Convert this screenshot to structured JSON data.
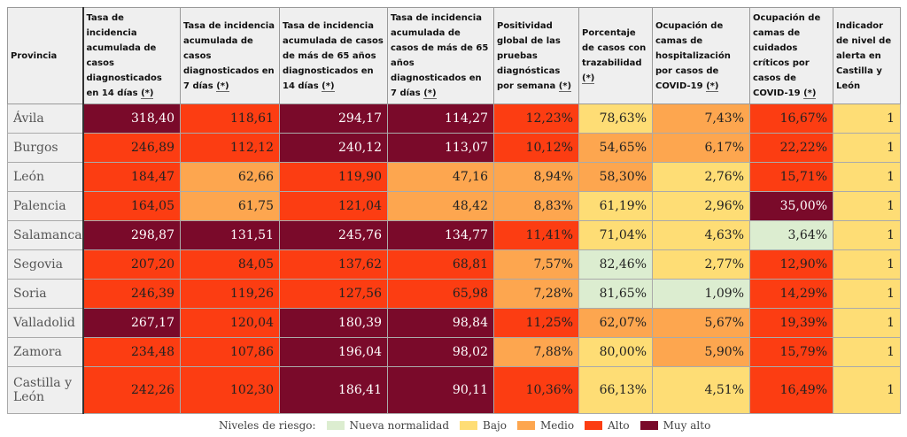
{
  "colors": {
    "M": "#7a0a2a",
    "A": "#fc3d12",
    "D": "#fda64f",
    "B": "#fedd75",
    "N": "#dcedd0"
  },
  "headers": [
    {
      "label": "Provincia",
      "note": ""
    },
    {
      "label": "Tasa de incidencia acumulada de casos diagnosticados en 14 días",
      "note": "(*)"
    },
    {
      "label": "Tasa de incidencia acumulada de casos diagnosticados en 7 días",
      "note": "(*)"
    },
    {
      "label": "Tasa de incidencia acumulada de casos de más de 65 años diagnosticados en 14 días",
      "note": "(*)"
    },
    {
      "label": "Tasa de incidencia acumulada de casos de más de 65 años diagnosticados en 7 días",
      "note": "(*)"
    },
    {
      "label": "Positividad global de las pruebas diagnósticas por semana",
      "note": "(*)"
    },
    {
      "label": "Porcentaje de casos con trazabilidad",
      "note": "(*)"
    },
    {
      "label": "Ocupación de camas de hospitalización por casos de COVID-19",
      "note": "(*)"
    },
    {
      "label": "Ocupación de camas de cuidados críticos por casos de COVID-19",
      "note": "(*)"
    },
    {
      "label": "Indicador de nivel de alerta en Castilla y León",
      "note": ""
    }
  ],
  "rows": [
    {
      "province": "Ávila",
      "values": [
        "318,40",
        "118,61",
        "294,17",
        "114,27",
        "12,23%",
        "78,63%",
        "7,43%",
        "16,67%",
        "1"
      ],
      "levels": [
        "M",
        "A",
        "M",
        "M",
        "A",
        "B",
        "D",
        "A",
        "B"
      ]
    },
    {
      "province": "Burgos",
      "values": [
        "246,89",
        "112,12",
        "240,12",
        "113,07",
        "10,12%",
        "54,65%",
        "6,17%",
        "22,22%",
        "1"
      ],
      "levels": [
        "A",
        "A",
        "M",
        "M",
        "A",
        "D",
        "D",
        "A",
        "B"
      ]
    },
    {
      "province": "León",
      "values": [
        "184,47",
        "62,66",
        "119,90",
        "47,16",
        "8,94%",
        "58,30%",
        "2,76%",
        "15,71%",
        "1"
      ],
      "levels": [
        "A",
        "D",
        "A",
        "D",
        "D",
        "D",
        "B",
        "A",
        "B"
      ]
    },
    {
      "province": "Palencia",
      "values": [
        "164,05",
        "61,75",
        "121,04",
        "48,42",
        "8,83%",
        "61,19%",
        "2,96%",
        "35,00%",
        "1"
      ],
      "levels": [
        "A",
        "D",
        "A",
        "D",
        "D",
        "B",
        "B",
        "M",
        "B"
      ]
    },
    {
      "province": "Salamanca",
      "values": [
        "298,87",
        "131,51",
        "245,76",
        "134,77",
        "11,41%",
        "71,04%",
        "4,63%",
        "3,64%",
        "1"
      ],
      "levels": [
        "M",
        "M",
        "M",
        "M",
        "A",
        "B",
        "B",
        "N",
        "B"
      ]
    },
    {
      "province": "Segovia",
      "values": [
        "207,20",
        "84,05",
        "137,62",
        "68,81",
        "7,57%",
        "82,46%",
        "2,77%",
        "12,90%",
        "1"
      ],
      "levels": [
        "A",
        "A",
        "A",
        "A",
        "D",
        "N",
        "B",
        "A",
        "B"
      ]
    },
    {
      "province": "Soria",
      "values": [
        "246,39",
        "119,26",
        "127,56",
        "65,98",
        "7,28%",
        "81,65%",
        "1,09%",
        "14,29%",
        "1"
      ],
      "levels": [
        "A",
        "A",
        "A",
        "A",
        "D",
        "N",
        "N",
        "A",
        "B"
      ]
    },
    {
      "province": "Valladolid",
      "values": [
        "267,17",
        "120,04",
        "180,39",
        "98,84",
        "11,25%",
        "62,07%",
        "5,67%",
        "19,39%",
        "1"
      ],
      "levels": [
        "M",
        "A",
        "M",
        "M",
        "A",
        "D",
        "D",
        "A",
        "B"
      ]
    },
    {
      "province": "Zamora",
      "values": [
        "234,48",
        "107,86",
        "196,04",
        "98,02",
        "7,88%",
        "80,00%",
        "5,90%",
        "15,79%",
        "1"
      ],
      "levels": [
        "A",
        "A",
        "M",
        "M",
        "D",
        "B",
        "D",
        "A",
        "B"
      ]
    },
    {
      "province": "Castilla y León",
      "values": [
        "242,26",
        "102,30",
        "186,41",
        "90,11",
        "10,36%",
        "66,13%",
        "4,51%",
        "16,49%",
        "1"
      ],
      "levels": [
        "A",
        "A",
        "M",
        "M",
        "A",
        "B",
        "B",
        "A",
        "B"
      ]
    }
  ],
  "legend": {
    "title": "Niveles de riesgo:",
    "items": [
      {
        "key": "N",
        "label": "Nueva normalidad"
      },
      {
        "key": "B",
        "label": "Bajo"
      },
      {
        "key": "D",
        "label": "Medio"
      },
      {
        "key": "A",
        "label": "Alto"
      },
      {
        "key": "M",
        "label": "Muy alto"
      }
    ]
  }
}
